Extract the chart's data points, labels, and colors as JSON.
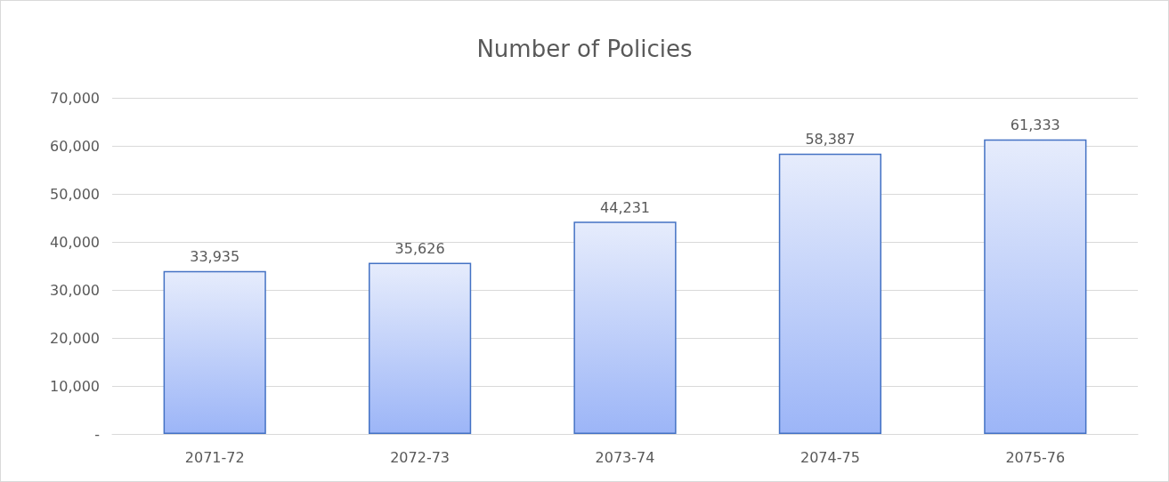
{
  "chart_data": {
    "type": "bar",
    "title": "Number of Policies",
    "categories": [
      "2071-72",
      "2072-73",
      "2073-74",
      "2074-75",
      "2075-76"
    ],
    "values": [
      33935,
      35626,
      44231,
      58387,
      61333
    ],
    "value_labels": [
      "33,935",
      "35,626",
      "44,231",
      "58,387",
      "61,333"
    ],
    "color": "#4472c4",
    "ylim": [
      0,
      70000
    ],
    "yticks": [
      {
        "value": 0,
        "label": "-"
      },
      {
        "value": 10000,
        "label": "10,000"
      },
      {
        "value": 20000,
        "label": "20,000"
      },
      {
        "value": 30000,
        "label": "30,000"
      },
      {
        "value": 40000,
        "label": "40,000"
      },
      {
        "value": 50000,
        "label": "50,000"
      },
      {
        "value": 60000,
        "label": "60,000"
      },
      {
        "value": 70000,
        "label": "70,000"
      }
    ],
    "grid": "y"
  }
}
